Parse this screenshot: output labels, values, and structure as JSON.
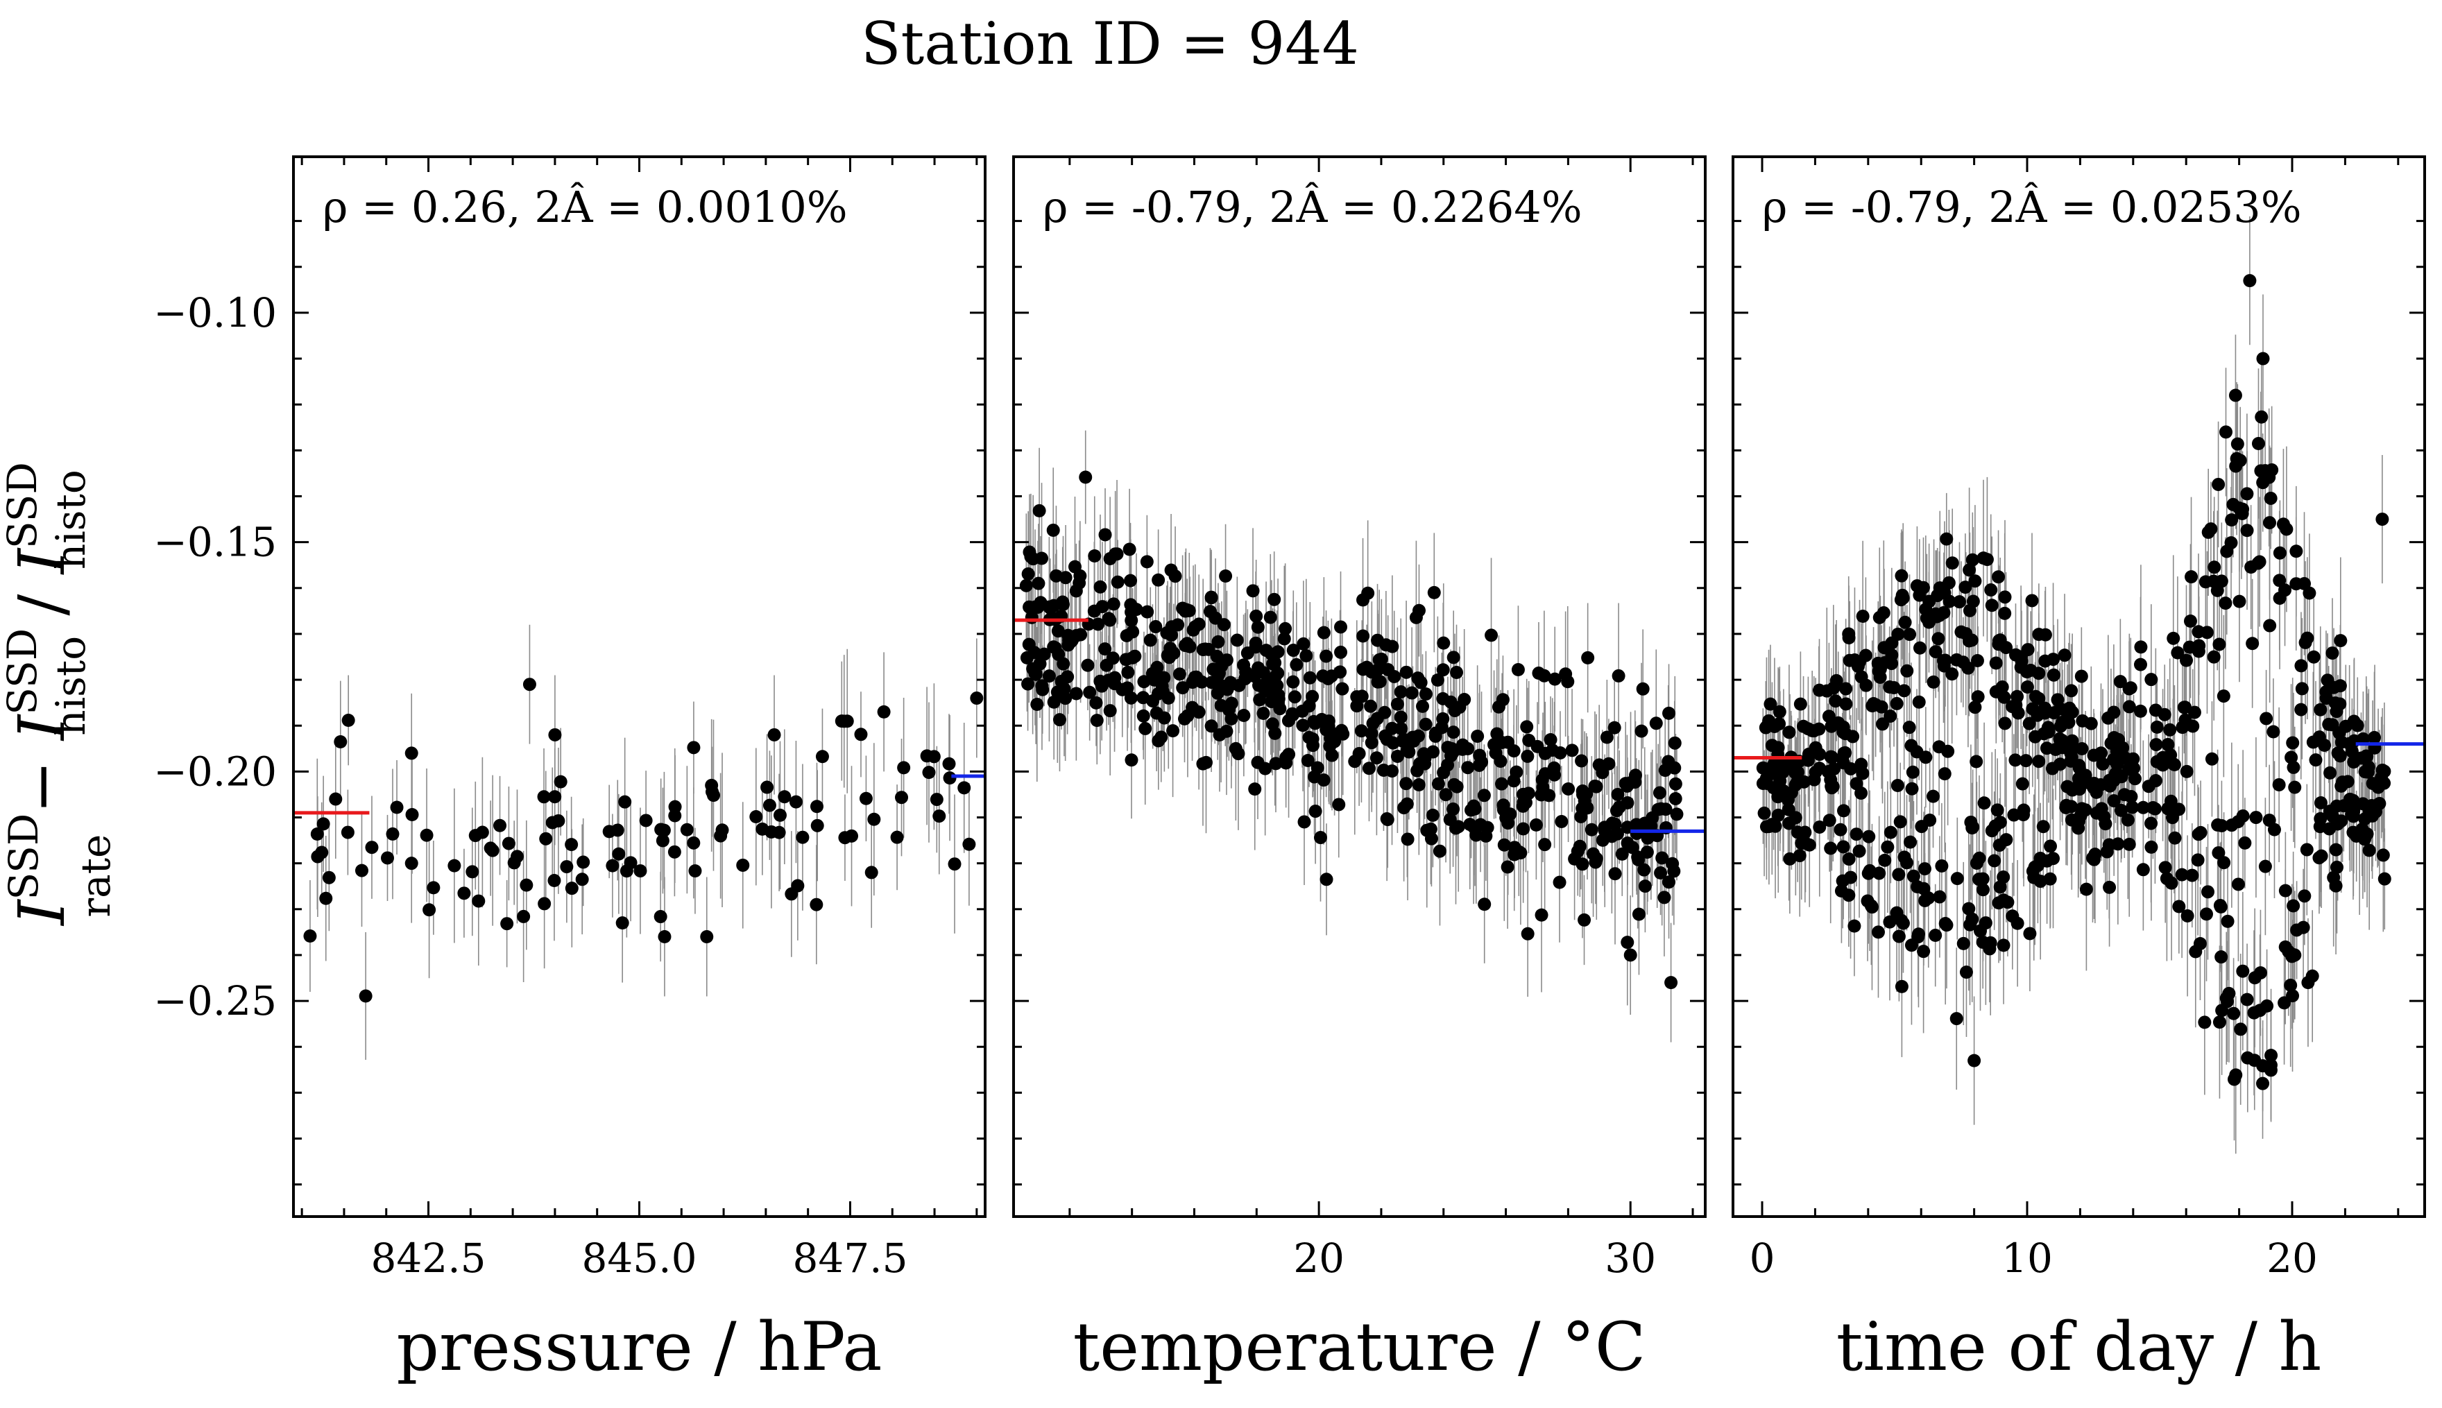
{
  "chart_data": {
    "suptitle": "Station ID = 944",
    "ylabel": "I_rate^SSD − I_histo^SSD / I_histo^SSD",
    "ylabel_parts": {
      "a": "I",
      "a_sup": "SSD",
      "a_sub": "rate",
      "minus": " − ",
      "b": "I",
      "b_sup": "SSD",
      "b_sub": "histo",
      "slash": " / ",
      "c": "I",
      "c_sup": "SSD",
      "c_sub": "histo"
    },
    "ylim": [
      -0.297,
      -0.066
    ],
    "y_major_ticks": [
      -0.25,
      -0.2,
      -0.15,
      -0.1
    ],
    "y_tick_labels": [
      "−0.25",
      "−0.20",
      "−0.15",
      "−0.10"
    ],
    "colors": {
      "points": "#000000",
      "errorbars": "#8a8a8a",
      "low_ref": "#e8191c",
      "high_ref": "#1326e8"
    },
    "panels": [
      {
        "type": "scatter",
        "xlabel": "pressure / hPa",
        "xlim": [
          840.9,
          849.1
        ],
        "x_major_ticks": [
          842.5,
          845.0,
          847.5
        ],
        "x_tick_labels": [
          "842.5",
          "845.0",
          "847.5"
        ],
        "x_minor_step": 0.5,
        "annotation": "ρ = 0.26, 2Â = 0.0010%",
        "low_ref": {
          "x": [
            840.9,
            841.8
          ],
          "y": -0.209
        },
        "high_ref": {
          "x": [
            848.7,
            849.1
          ],
          "y": -0.201
        },
        "cloud": {
          "n": 110,
          "x": [
            841.0,
            849.0
          ],
          "slope": 0.0021,
          "ref_x": 844.8,
          "ref_y": -0.214,
          "spread": 0.009,
          "yerr": 0.013,
          "seed": 11
        },
        "outliers": [
          {
            "x": 841.4,
            "y": -0.206
          },
          {
            "x": 842.3,
            "y": -0.196
          },
          {
            "x": 842.3,
            "y": -0.22
          },
          {
            "x": 843.7,
            "y": -0.181
          },
          {
            "x": 844.0,
            "y": -0.192
          },
          {
            "x": 844.8,
            "y": -0.233
          },
          {
            "x": 845.3,
            "y": -0.236
          },
          {
            "x": 845.8,
            "y": -0.236
          },
          {
            "x": 846.6,
            "y": -0.192
          },
          {
            "x": 847.1,
            "y": -0.229
          },
          {
            "x": 847.4,
            "y": -0.189
          },
          {
            "x": 847.9,
            "y": -0.187
          },
          {
            "x": 849.0,
            "y": -0.184
          }
        ]
      },
      {
        "type": "scatter",
        "xlabel": "temperature / °C",
        "xlim": [
          10.2,
          32.4
        ],
        "x_major_ticks": [
          20,
          30
        ],
        "x_tick_labels": [
          "20",
          "30"
        ],
        "x_minor_step": 2,
        "annotation": "ρ = -0.79, 2Â = 0.2264%",
        "low_ref": {
          "x": [
            10.2,
            12.6
          ],
          "y": -0.167
        },
        "high_ref": {
          "x": [
            30.0,
            32.4
          ],
          "y": -0.213
        },
        "cloud": {
          "n": 560,
          "x": [
            10.6,
            31.5
          ],
          "slope": -0.0022,
          "ref_x": 12.0,
          "ref_y": -0.17,
          "spread": 0.011,
          "yerr": 0.013,
          "seed": 22
        },
        "outliers": [
          {
            "x": 11.0,
            "y": -0.159
          },
          {
            "x": 12.8,
            "y": -0.153
          },
          {
            "x": 23.7,
            "y": -0.161
          },
          {
            "x": 24.0,
            "y": -0.172
          },
          {
            "x": 30.4,
            "y": -0.182
          },
          {
            "x": 30.0,
            "y": -0.24
          },
          {
            "x": 31.3,
            "y": -0.246
          }
        ]
      },
      {
        "type": "scatter",
        "xlabel": "time of day / h",
        "xlim": [
          -1.1,
          25.0
        ],
        "x_major_ticks": [
          0,
          10,
          20
        ],
        "x_tick_labels": [
          "0",
          "10",
          "20"
        ],
        "x_minor_step": 2,
        "annotation": "ρ = -0.79, 2Â = 0.0253%",
        "low_ref": {
          "x": [
            -1.1,
            1.5
          ],
          "y": -0.197
        },
        "high_ref": {
          "x": [
            22.4,
            25.0
          ],
          "y": -0.194
        },
        "cloud": {
          "n": 720,
          "x": [
            0.0,
            23.5
          ],
          "bands": true,
          "yerr": 0.014,
          "seed": 33
        },
        "outliers": [
          {
            "x": 18.4,
            "y": -0.093
          },
          {
            "x": 18.9,
            "y": -0.11
          },
          {
            "x": 17.5,
            "y": -0.126
          },
          {
            "x": 8.0,
            "y": -0.263
          },
          {
            "x": 20.1,
            "y": -0.24
          },
          {
            "x": 20.6,
            "y": -0.246
          },
          {
            "x": 23.4,
            "y": -0.145
          }
        ]
      }
    ]
  }
}
